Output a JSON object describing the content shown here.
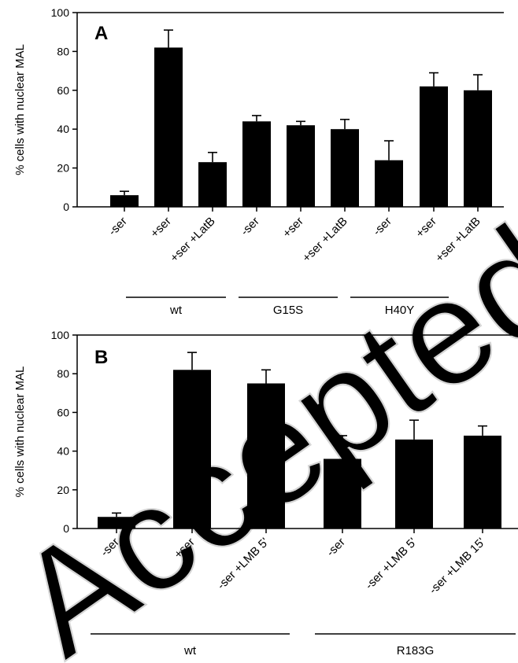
{
  "watermark": "Accepted Manuscript",
  "chart_data": [
    {
      "type": "bar",
      "panel_label": "A",
      "ylabel": "% cells with nuclear MAL",
      "ylim": [
        0,
        100
      ],
      "yticks": [
        0,
        20,
        40,
        60,
        80,
        100
      ],
      "categories": [
        "-ser",
        "+ser",
        "+ser +LatB",
        "-ser",
        "+ser",
        "+ser +LatB",
        "-ser",
        "+ser",
        "+ser +LatB"
      ],
      "values": [
        6,
        82,
        23,
        44,
        42,
        40,
        24,
        62,
        60
      ],
      "errors": [
        2,
        9,
        5,
        3,
        2,
        5,
        10,
        7,
        8
      ],
      "groups": [
        {
          "label": "wt",
          "start": 0,
          "end": 2
        },
        {
          "label": "G15S",
          "start": 3,
          "end": 5
        },
        {
          "label": "H40Y",
          "start": 6,
          "end": 8
        }
      ],
      "bar_color": "#000000",
      "grid": false
    },
    {
      "type": "bar",
      "panel_label": "B",
      "ylabel": "% cells with nuclear MAL",
      "ylim": [
        0,
        100
      ],
      "yticks": [
        0,
        20,
        40,
        60,
        80,
        100
      ],
      "categories": [
        "-ser",
        "+ser",
        "-ser +LMB 5'",
        "-ser",
        "-ser +LMB 5'",
        "-ser +LMB 15'"
      ],
      "values": [
        6,
        82,
        75,
        36,
        46,
        48
      ],
      "errors": [
        2,
        9,
        7,
        12,
        10,
        5
      ],
      "groups": [
        {
          "label": "wt",
          "start": 0,
          "end": 2
        },
        {
          "label": "R183G",
          "start": 3,
          "end": 5
        }
      ],
      "bar_color": "#000000",
      "grid": false
    }
  ]
}
